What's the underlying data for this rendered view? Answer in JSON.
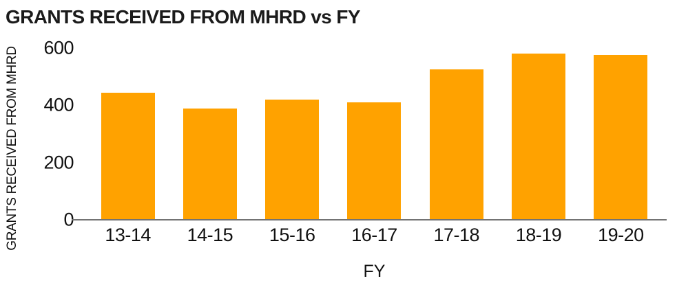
{
  "chart_data": {
    "type": "bar",
    "title": "GRANTS RECEIVED FROM MHRD vs FY",
    "xlabel": "FY",
    "ylabel": "GRANTS RECEIVED FROM MHRD",
    "categories": [
      "13-14",
      "14-15",
      "15-16",
      "16-17",
      "17-18",
      "18-19",
      "19-20"
    ],
    "values": [
      445,
      390,
      420,
      410,
      525,
      580,
      575
    ],
    "ylim": [
      0,
      600
    ],
    "yticks": [
      0,
      200,
      400,
      600
    ],
    "grid": false,
    "legend": "none",
    "bar_color": "#FFA200",
    "axis_line_color": "#737373",
    "text_color": "#111111",
    "background_color": "#FFFFFF"
  }
}
